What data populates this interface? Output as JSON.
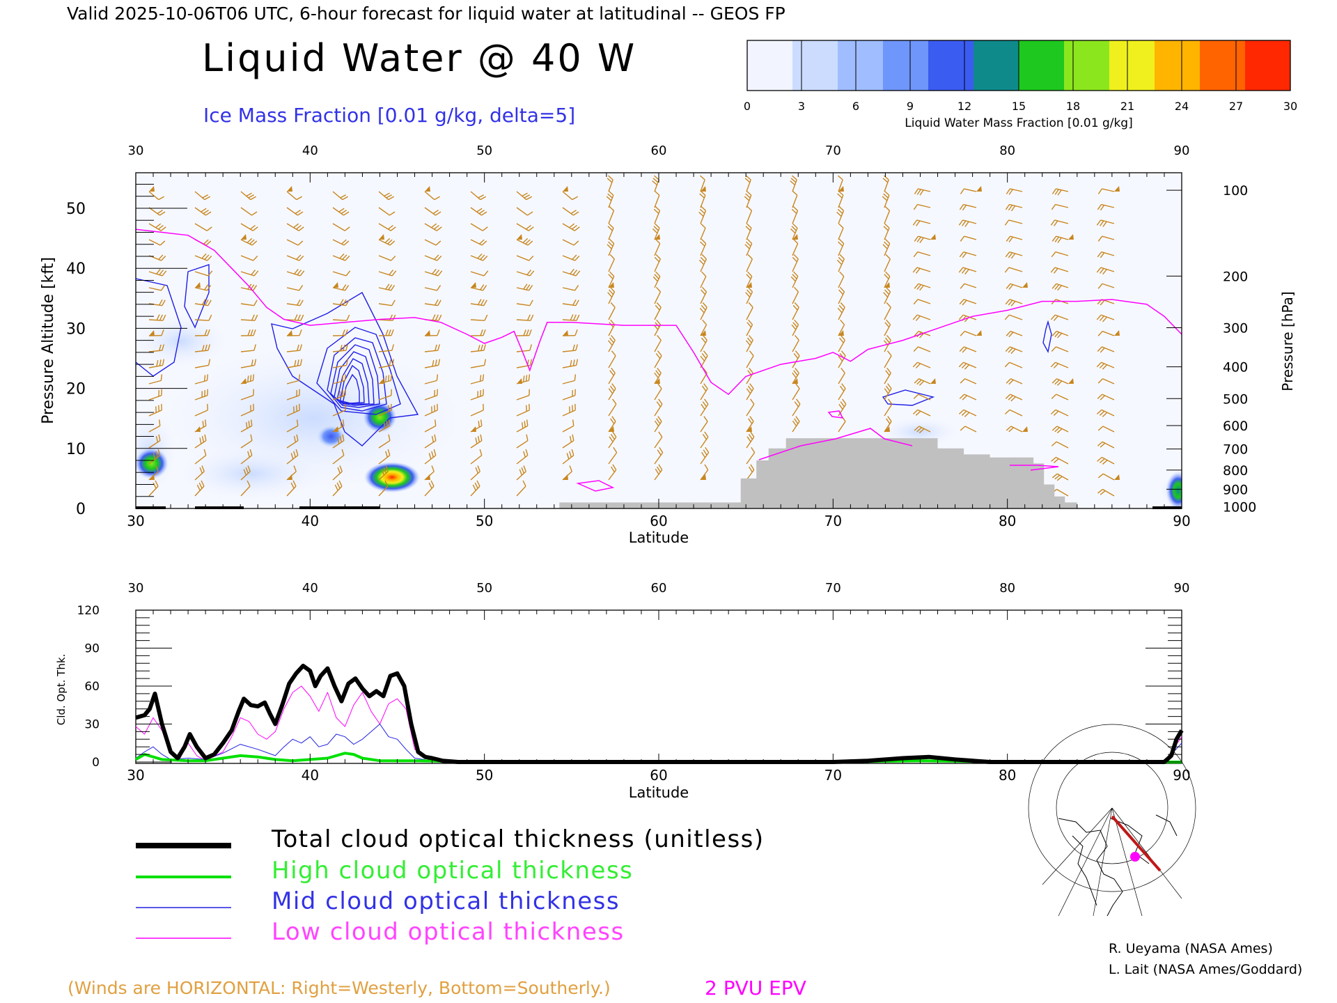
{
  "header": {
    "valid_line": "Valid 2025-10-06T06 UTC, 6-hour forecast for liquid water at latitudinal -- GEOS FP",
    "main_title": "Liquid Water @ 40 W",
    "subtitle": "Ice Mass Fraction [0.01 g/kg, delta=5]"
  },
  "colorbar": {
    "ticks": [
      "0",
      "3",
      "6",
      "9",
      "12",
      "15",
      "18",
      "21",
      "24",
      "27",
      "30"
    ],
    "label": "Liquid Water Mass Fraction [0.01 g/kg]",
    "colors": [
      "#f2f5ff",
      "#cbdcff",
      "#9fbdff",
      "#6f96fb",
      "#3b5cf0",
      "#0f8a8a",
      "#1ec81e",
      "#8ce61e",
      "#f0f01e",
      "#ffb400",
      "#ff6400",
      "#ff2800"
    ]
  },
  "chart_data": [
    {
      "type": "heatmap",
      "title": "Liquid Water @ 40 W",
      "xlabel": "Latitude",
      "ylabel_left": "Pressure Altitude [kft]",
      "ylabel_right": "Pressure [hPa]",
      "xlim": [
        30,
        90
      ],
      "ylim_kft": [
        0,
        55
      ],
      "x_ticks": [
        "30",
        "40",
        "50",
        "60",
        "70",
        "80",
        "90"
      ],
      "y_ticks": [
        "0",
        "10",
        "20",
        "30",
        "40",
        "50"
      ],
      "pressure_ticks": [
        {
          "label": "100",
          "kft": 53.0
        },
        {
          "label": "200",
          "kft": 38.7
        },
        {
          "label": "300",
          "kft": 30.1
        },
        {
          "label": "400",
          "kft": 23.6
        },
        {
          "label": "500",
          "kft": 18.3
        },
        {
          "label": "600",
          "kft": 13.8
        },
        {
          "label": "700",
          "kft": 9.9
        },
        {
          "label": "800",
          "kft": 6.4
        },
        {
          "label": "900",
          "kft": 3.2
        },
        {
          "label": "1000",
          "kft": 0.3
        }
      ],
      "liquid_water_blobs": [
        {
          "lat": 30.9,
          "kft": 7.5,
          "value": 15
        },
        {
          "lat": 44.7,
          "kft": 5.2,
          "value": 25
        },
        {
          "lat": 44.0,
          "kft": 15.2,
          "value": 15
        },
        {
          "lat": 41.2,
          "kft": 12.0,
          "value": 6
        },
        {
          "lat": 89.8,
          "kft": 3.0,
          "value": 9
        }
      ],
      "ice_contour_center": {
        "lat": 41.8,
        "kft": 19.5
      },
      "epv_2pvu_line": [
        [
          30,
          46.5
        ],
        [
          31.5,
          46
        ],
        [
          33,
          45.5
        ],
        [
          34.5,
          43
        ],
        [
          35.5,
          40
        ],
        [
          36.5,
          37
        ],
        [
          37.5,
          33.5
        ],
        [
          38.5,
          31.5
        ],
        [
          40,
          30.5
        ],
        [
          42,
          31
        ],
        [
          44,
          31.5
        ],
        [
          46,
          31.8
        ],
        [
          47.5,
          31
        ],
        [
          49,
          29
        ],
        [
          50,
          27.5
        ],
        [
          51,
          28.5
        ],
        [
          51.7,
          29.5
        ],
        [
          52.2,
          26
        ],
        [
          52.6,
          23
        ],
        [
          53.2,
          28
        ],
        [
          53.6,
          31
        ],
        [
          55,
          31
        ],
        [
          58,
          30.5
        ],
        [
          60,
          30.5
        ],
        [
          61,
          30.5
        ],
        [
          62,
          26
        ],
        [
          63,
          21
        ],
        [
          64,
          19
        ],
        [
          65,
          22
        ],
        [
          67,
          24
        ],
        [
          69,
          25
        ],
        [
          70,
          26
        ],
        [
          71,
          24.5
        ],
        [
          72,
          26.5
        ],
        [
          74,
          28
        ],
        [
          76,
          30
        ],
        [
          78,
          32
        ],
        [
          80,
          33
        ],
        [
          82,
          34.5
        ],
        [
          84,
          34.5
        ],
        [
          86,
          34.8
        ],
        [
          88,
          34
        ],
        [
          89,
          32
        ],
        [
          90,
          29
        ]
      ],
      "terrain_profile": [
        [
          54.3,
          0
        ],
        [
          54.3,
          1
        ],
        [
          64.7,
          1
        ],
        [
          64.7,
          5
        ],
        [
          65.6,
          5
        ],
        [
          65.6,
          8
        ],
        [
          66.3,
          8
        ],
        [
          66.3,
          10
        ],
        [
          67.3,
          10
        ],
        [
          67.3,
          11.7
        ],
        [
          76.0,
          11.7
        ],
        [
          76.0,
          10
        ],
        [
          77.5,
          10
        ],
        [
          77.5,
          9
        ],
        [
          79,
          9
        ],
        [
          79,
          8.5
        ],
        [
          81.5,
          8.5
        ],
        [
          81.5,
          7.5
        ],
        [
          82.1,
          7.5
        ],
        [
          82.1,
          4
        ],
        [
          82.7,
          4
        ],
        [
          82.7,
          2
        ],
        [
          83.3,
          2
        ],
        [
          83.3,
          1
        ],
        [
          84,
          1
        ],
        [
          84,
          0
        ]
      ]
    },
    {
      "type": "line",
      "xlabel": "Latitude",
      "ylabel": "Cld. Opt. Thk.",
      "xlim": [
        30,
        90
      ],
      "ylim": [
        0,
        120
      ],
      "x_ticks": [
        "30",
        "40",
        "50",
        "60",
        "70",
        "80",
        "90"
      ],
      "y_ticks": [
        "0",
        "30",
        "60",
        "90",
        "120"
      ],
      "series": [
        {
          "name": "Total cloud optical thickness (unitless)",
          "color": "#000000",
          "width": 6,
          "points": [
            [
              30,
              35
            ],
            [
              30.5,
              37
            ],
            [
              30.8,
              42
            ],
            [
              31.1,
              54
            ],
            [
              31.5,
              30
            ],
            [
              32,
              8
            ],
            [
              32.4,
              3
            ],
            [
              32.8,
              12
            ],
            [
              33.1,
              22
            ],
            [
              33.5,
              12
            ],
            [
              34,
              3
            ],
            [
              34.5,
              6
            ],
            [
              35,
              15
            ],
            [
              35.5,
              25
            ],
            [
              35.9,
              40
            ],
            [
              36.2,
              50
            ],
            [
              36.6,
              45
            ],
            [
              37,
              44
            ],
            [
              37.4,
              47
            ],
            [
              37.7,
              38
            ],
            [
              38,
              30
            ],
            [
              38.4,
              45
            ],
            [
              38.8,
              62
            ],
            [
              39.2,
              70
            ],
            [
              39.6,
              76
            ],
            [
              40,
              72
            ],
            [
              40.3,
              60
            ],
            [
              40.6,
              68
            ],
            [
              41,
              74
            ],
            [
              41.4,
              60
            ],
            [
              41.8,
              48
            ],
            [
              42.2,
              62
            ],
            [
              42.6,
              66
            ],
            [
              43,
              58
            ],
            [
              43.4,
              52
            ],
            [
              43.8,
              56
            ],
            [
              44.2,
              52
            ],
            [
              44.6,
              68
            ],
            [
              45,
              70
            ],
            [
              45.4,
              60
            ],
            [
              45.8,
              30
            ],
            [
              46.2,
              8
            ],
            [
              46.6,
              4
            ],
            [
              47,
              3
            ],
            [
              47.6,
              1
            ],
            [
              48.5,
              0
            ],
            [
              60,
              0
            ],
            [
              70,
              0
            ],
            [
              72,
              1
            ],
            [
              74,
              3
            ],
            [
              75.5,
              4
            ],
            [
              77,
              2
            ],
            [
              79,
              0
            ],
            [
              89,
              0
            ],
            [
              89.4,
              5
            ],
            [
              89.7,
              18
            ],
            [
              90,
              25
            ]
          ]
        },
        {
          "name": "High cloud optical thickness",
          "color": "#00e000",
          "width": 4,
          "points": [
            [
              30,
              2
            ],
            [
              30.5,
              6
            ],
            [
              31,
              4
            ],
            [
              31.5,
              2
            ],
            [
              33,
              1
            ],
            [
              34,
              1
            ],
            [
              35,
              3
            ],
            [
              36,
              5
            ],
            [
              37,
              4
            ],
            [
              38,
              2
            ],
            [
              39,
              1
            ],
            [
              40,
              2
            ],
            [
              41,
              3
            ],
            [
              42,
              7
            ],
            [
              42.5,
              6
            ],
            [
              43,
              3
            ],
            [
              44,
              1
            ],
            [
              46,
              1
            ],
            [
              50,
              0
            ],
            [
              60,
              0
            ],
            [
              70,
              0
            ],
            [
              75,
              1
            ],
            [
              80,
              0
            ],
            [
              90,
              0
            ]
          ]
        },
        {
          "name": "Mid cloud optical thickness",
          "color": "#2020e0",
          "width": 1,
          "points": [
            [
              30,
              3
            ],
            [
              30.5,
              8
            ],
            [
              31,
              12
            ],
            [
              31.5,
              6
            ],
            [
              32,
              2
            ],
            [
              33,
              3
            ],
            [
              34,
              2
            ],
            [
              35,
              7
            ],
            [
              36,
              14
            ],
            [
              37,
              10
            ],
            [
              38,
              5
            ],
            [
              38.5,
              12
            ],
            [
              39,
              18
            ],
            [
              39.5,
              15
            ],
            [
              40,
              20
            ],
            [
              40.5,
              12
            ],
            [
              41,
              14
            ],
            [
              41.5,
              22
            ],
            [
              42,
              20
            ],
            [
              42.5,
              14
            ],
            [
              43,
              18
            ],
            [
              43.5,
              24
            ],
            [
              44,
              30
            ],
            [
              44.5,
              20
            ],
            [
              45,
              18
            ],
            [
              45.5,
              10
            ],
            [
              46,
              3
            ],
            [
              47,
              1
            ],
            [
              50,
              0
            ],
            [
              70,
              0
            ],
            [
              75,
              1
            ],
            [
              80,
              0
            ],
            [
              89,
              0
            ],
            [
              90,
              15
            ]
          ]
        },
        {
          "name": "Low cloud optical thickness",
          "color": "#ff00ff",
          "width": 1,
          "points": [
            [
              30,
              28
            ],
            [
              30.5,
              22
            ],
            [
              31,
              35
            ],
            [
              31.5,
              25
            ],
            [
              32,
              8
            ],
            [
              32.5,
              2
            ],
            [
              33,
              15
            ],
            [
              33.5,
              5
            ],
            [
              34,
              1
            ],
            [
              35,
              8
            ],
            [
              35.5,
              20
            ],
            [
              36,
              35
            ],
            [
              36.5,
              32
            ],
            [
              37,
              22
            ],
            [
              37.5,
              18
            ],
            [
              38,
              24
            ],
            [
              38.5,
              42
            ],
            [
              39,
              55
            ],
            [
              39.5,
              60
            ],
            [
              40,
              52
            ],
            [
              40.5,
              40
            ],
            [
              41,
              55
            ],
            [
              41.5,
              35
            ],
            [
              42,
              28
            ],
            [
              42.5,
              45
            ],
            [
              43,
              55
            ],
            [
              43.5,
              40
            ],
            [
              44,
              30
            ],
            [
              44.5,
              46
            ],
            [
              45,
              50
            ],
            [
              45.5,
              42
            ],
            [
              46,
              10
            ],
            [
              47,
              2
            ],
            [
              48,
              0
            ],
            [
              60,
              0
            ],
            [
              70,
              0
            ],
            [
              72,
              1
            ],
            [
              74,
              3
            ],
            [
              75.5,
              3
            ],
            [
              77,
              1
            ],
            [
              79,
              0
            ],
            [
              89,
              0
            ],
            [
              90,
              20
            ]
          ]
        }
      ]
    }
  ],
  "legend": {
    "total": "Total cloud optical thickness (unitless)",
    "high": "High cloud optical thickness",
    "mid": "Mid cloud optical thickness",
    "low": "Low cloud optical thickness"
  },
  "credits": {
    "line1": "R. Ueyama (NASA Ames)",
    "line2": "L. Lait (NASA Ames/Goddard)"
  },
  "footer": {
    "winds_note": "(Winds are HORIZONTAL: Right=Westerly, Bottom=Southerly.)",
    "epv_note": "2 PVU EPV"
  },
  "colors": {
    "wind_barb": "#c8861e",
    "epv": "#ff00ff",
    "ice_contour": "#1e1ee6",
    "terrain": "#c0c0c0",
    "subtitle": "#3232e6",
    "winds_note": "#e0a040",
    "map_track": "#c01818"
  }
}
